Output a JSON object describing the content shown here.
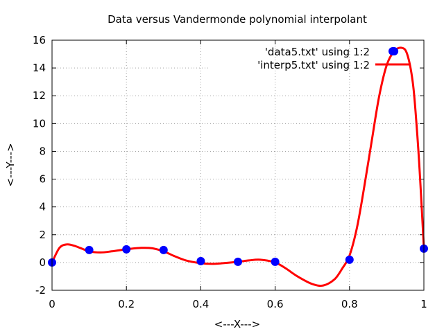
{
  "chart_data": {
    "type": "line",
    "title": "Data versus Vandermonde polynomial interpolant",
    "xlabel": "<---X--->",
    "ylabel": "<---Y--->",
    "xlim": [
      0,
      1
    ],
    "ylim": [
      -2,
      16
    ],
    "x_ticks": [
      0,
      0.2,
      0.4,
      0.6,
      0.8,
      1
    ],
    "x_tick_labels": [
      "0",
      "0.2",
      "0.4",
      "0.6",
      "0.8",
      "1"
    ],
    "y_ticks": [
      -2,
      0,
      2,
      4,
      6,
      8,
      10,
      12,
      14,
      16
    ],
    "y_tick_labels": [
      "-2",
      "0",
      "2",
      "4",
      "6",
      "8",
      "10",
      "12",
      "14",
      "16"
    ],
    "grid": true,
    "legend_position": "top-right",
    "series": [
      {
        "name": "'data5.txt' using 1:2",
        "style": "points",
        "color": "#0000ff",
        "x": [
          0,
          0.1,
          0.2,
          0.3,
          0.4,
          0.5,
          0.6,
          0.8,
          0.92,
          1.0
        ],
        "y": [
          0.0,
          0.9,
          0.95,
          0.9,
          0.1,
          0.05,
          0.05,
          0.2,
          15.2,
          1.0
        ]
      },
      {
        "name": "'interp5.txt' using 1:2",
        "style": "line",
        "color": "#ff0000",
        "x": [
          0,
          0.02,
          0.04,
          0.06,
          0.08,
          0.1,
          0.13,
          0.16,
          0.2,
          0.24,
          0.27,
          0.3,
          0.33,
          0.36,
          0.4,
          0.43,
          0.46,
          0.5,
          0.53,
          0.56,
          0.6,
          0.63,
          0.66,
          0.7,
          0.73,
          0.76,
          0.78,
          0.8,
          0.82,
          0.84,
          0.86,
          0.88,
          0.9,
          0.92,
          0.94,
          0.955,
          0.97,
          0.98,
          0.99,
          1.0
        ],
        "y": [
          0.0,
          1.05,
          1.3,
          1.2,
          1.0,
          0.8,
          0.72,
          0.8,
          0.95,
          1.05,
          1.02,
          0.8,
          0.45,
          0.15,
          -0.05,
          -0.1,
          -0.05,
          0.05,
          0.15,
          0.2,
          0.0,
          -0.45,
          -1.0,
          -1.55,
          -1.65,
          -1.2,
          -0.45,
          0.5,
          2.5,
          5.5,
          8.8,
          12.0,
          14.2,
          15.2,
          15.45,
          15.0,
          13.0,
          10.0,
          6.0,
          1.0
        ]
      }
    ]
  }
}
